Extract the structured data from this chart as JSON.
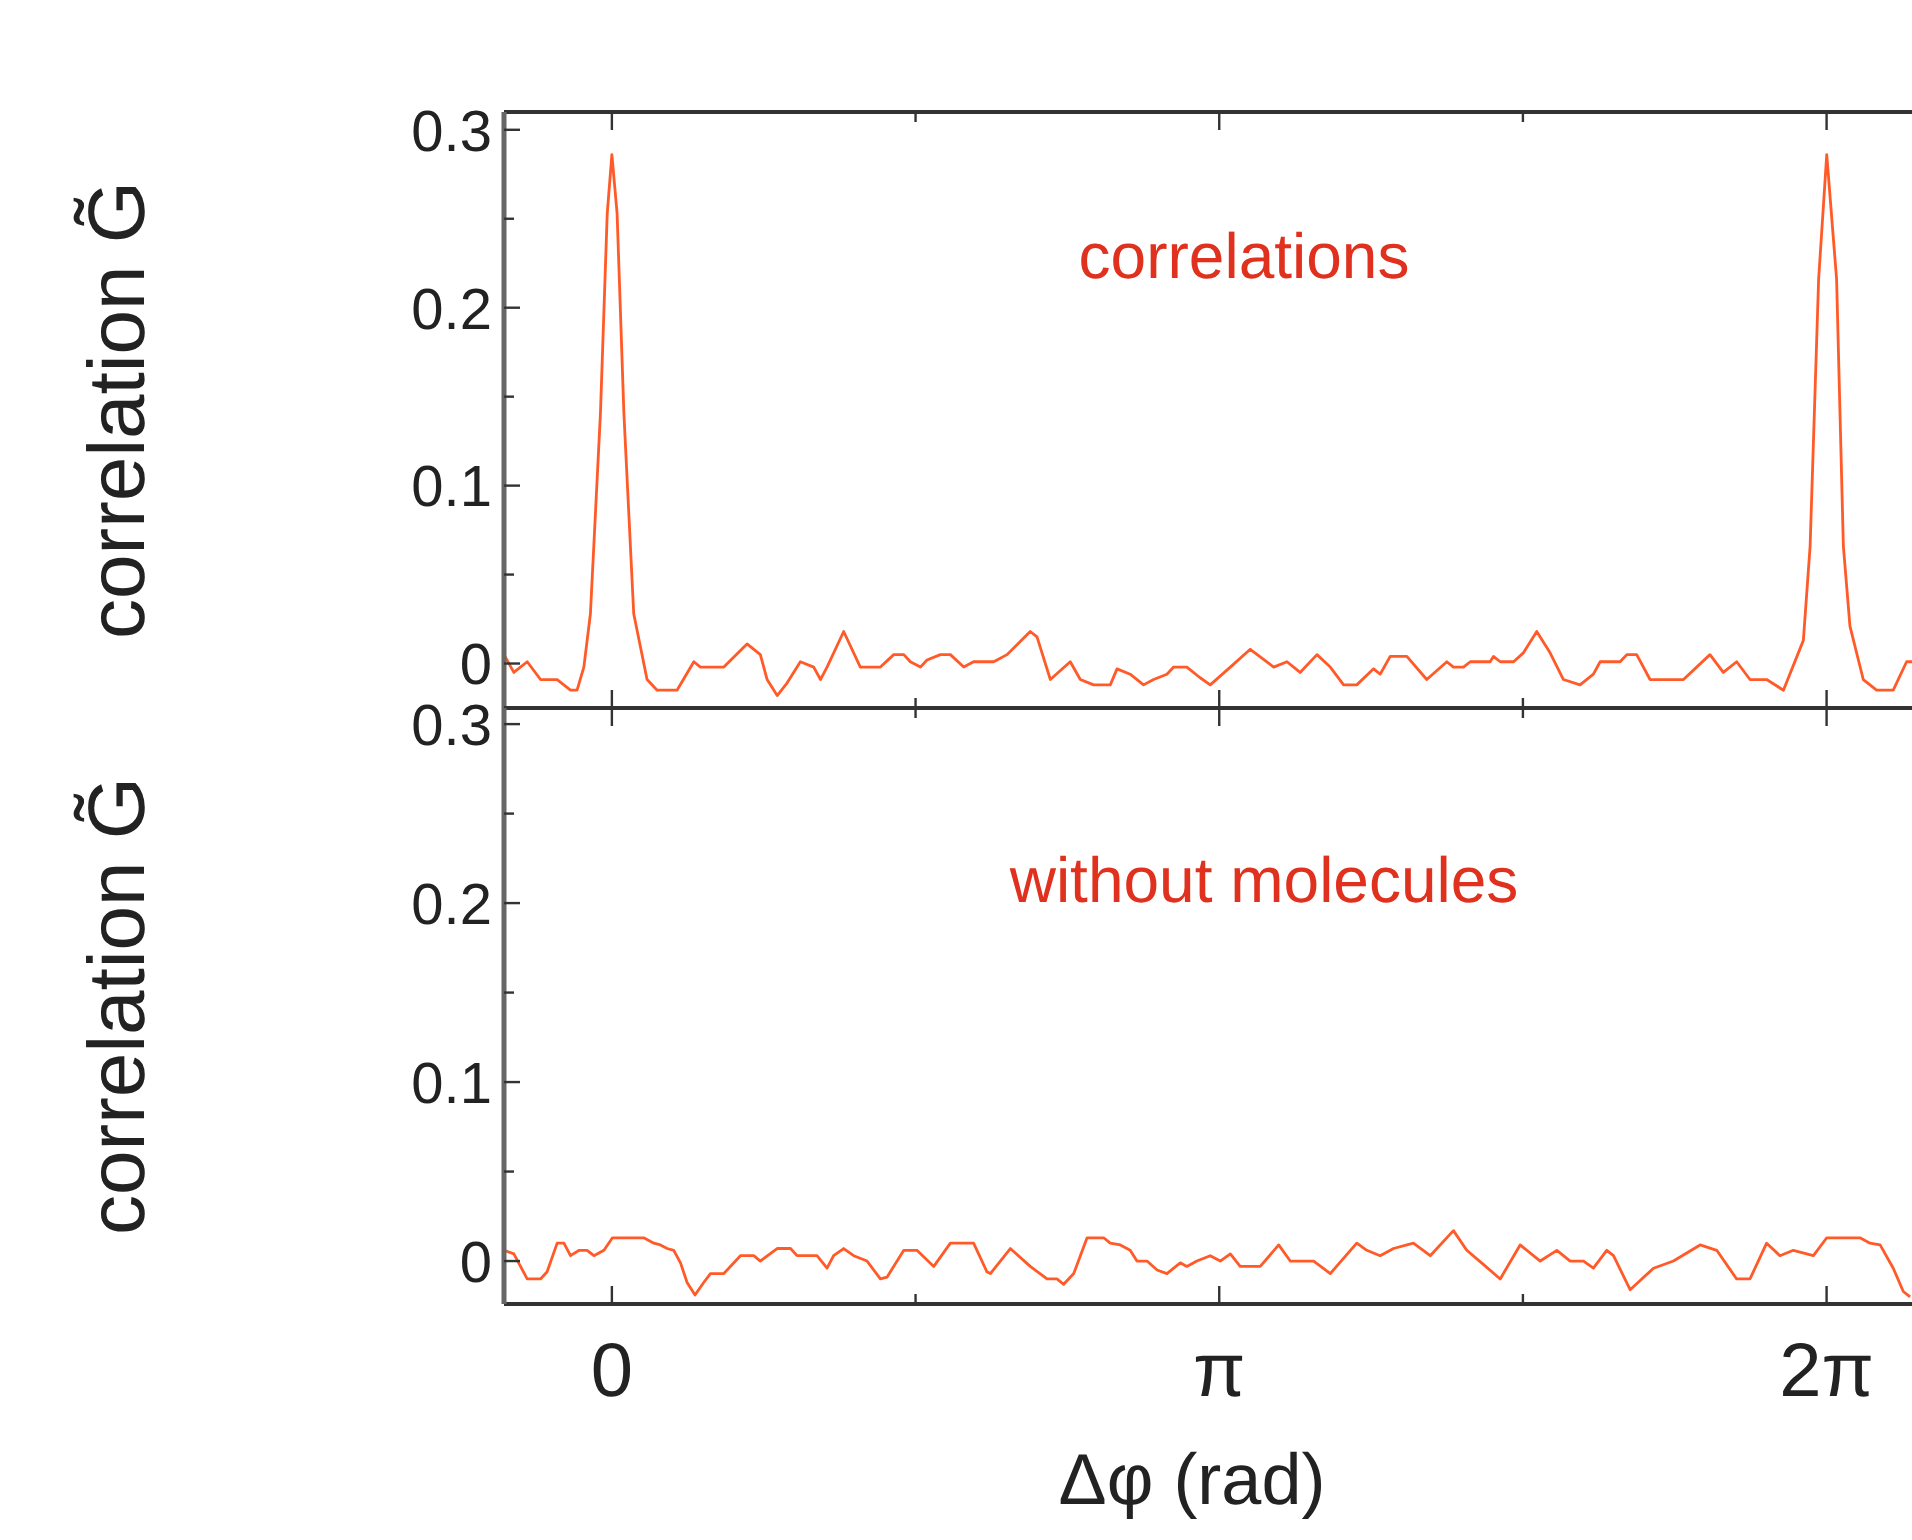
{
  "chart_data": [
    {
      "type": "line",
      "ylabel": "correlation G̃",
      "annotations": [
        "correlations"
      ],
      "xlim": [
        -0.558,
        6.725
      ],
      "ylim": [
        -0.025,
        0.31
      ],
      "xticks": [
        {
          "value": 0,
          "label": null
        },
        {
          "value": 1.5708,
          "label": null
        },
        {
          "value": 3.1416,
          "label": null
        },
        {
          "value": 4.7124,
          "label": null
        },
        {
          "value": 6.2832,
          "label": null
        }
      ],
      "yticks": [
        0,
        {
          "value": 0.05,
          "label": null
        },
        0.1,
        {
          "value": 0.15,
          "label": null
        },
        0.2,
        {
          "value": 0.25,
          "label": null
        },
        0.3
      ],
      "tick_labels": "y",
      "grid": false,
      "marker": "none",
      "line_style": "solid",
      "series": [
        {
          "color": "#ff5a28",
          "x": [
            -0.558,
            -0.507,
            -0.438,
            -0.369,
            -0.283,
            -0.214,
            -0.18,
            -0.145,
            -0.111,
            -0.059,
            -0.024,
            0.0,
            0.027,
            0.062,
            0.113,
            0.182,
            0.234,
            0.337,
            0.424,
            0.458,
            0.579,
            0.699,
            0.768,
            0.803,
            0.855,
            0.906,
            0.975,
            1.044,
            1.079,
            1.113,
            1.199,
            1.285,
            1.389,
            1.458,
            1.51,
            1.544,
            1.596,
            1.63,
            1.699,
            1.751,
            1.82,
            1.871,
            1.975,
            2.044,
            2.164,
            2.199,
            2.268,
            2.371,
            2.423,
            2.492,
            2.578,
            2.613,
            2.681,
            2.75,
            2.802,
            2.871,
            2.906,
            2.974,
            3.043,
            3.095,
            3.199,
            3.302,
            3.423,
            3.492,
            3.56,
            3.647,
            3.716,
            3.785,
            3.853,
            3.94,
            3.974,
            4.026,
            4.112,
            4.215,
            4.319,
            4.353,
            4.405,
            4.44,
            4.543,
            4.56,
            4.595,
            4.664,
            4.715,
            4.784,
            4.853,
            4.922,
            5.008,
            5.077,
            5.112,
            5.215,
            5.25,
            5.301,
            5.37,
            5.543,
            5.68,
            5.749,
            5.818,
            5.887,
            5.973,
            6.06,
            6.163,
            6.198,
            6.242,
            6.284,
            6.335,
            6.37,
            6.404,
            6.473,
            6.542,
            6.628,
            6.697,
            6.725
          ],
          "values": [
            0.005,
            -0.005,
            0.001,
            -0.009,
            -0.009,
            -0.015,
            -0.015,
            -0.002,
            0.028,
            0.141,
            0.253,
            0.286,
            0.253,
            0.141,
            0.028,
            -0.009,
            -0.015,
            -0.015,
            0.001,
            -0.002,
            -0.002,
            0.011,
            0.005,
            -0.009,
            -0.018,
            -0.011,
            0.001,
            -0.002,
            -0.009,
            -0.002,
            0.018,
            -0.002,
            -0.002,
            0.005,
            0.005,
            0.001,
            -0.002,
            0.002,
            0.005,
            0.005,
            -0.002,
            0.001,
            0.001,
            0.005,
            0.018,
            0.015,
            -0.009,
            0.001,
            -0.009,
            -0.012,
            -0.012,
            -0.003,
            -0.006,
            -0.012,
            -0.009,
            -0.006,
            -0.002,
            -0.002,
            -0.008,
            -0.012,
            -0.002,
            0.008,
            -0.002,
            0.001,
            -0.005,
            0.005,
            -0.002,
            -0.012,
            -0.012,
            -0.003,
            -0.006,
            0.004,
            0.004,
            -0.009,
            0.001,
            -0.002,
            -0.002,
            0.001,
            0.001,
            0.004,
            0.001,
            0.001,
            0.006,
            0.018,
            0.006,
            -0.009,
            -0.012,
            -0.006,
            0.001,
            0.001,
            0.005,
            0.005,
            -0.009,
            -0.009,
            0.005,
            -0.005,
            0.001,
            -0.009,
            -0.009,
            -0.015,
            0.013,
            0.066,
            0.216,
            0.286,
            0.216,
            0.066,
            0.021,
            -0.009,
            -0.015,
            -0.015,
            0.001,
            0.001
          ]
        }
      ]
    },
    {
      "type": "line",
      "ylabel": "correlation G̃",
      "xlabel": "Δφ (rad)",
      "annotations": [
        "without molecules"
      ],
      "xlim": [
        -0.558,
        6.725
      ],
      "ylim": [
        -0.024,
        0.309
      ],
      "xticks": [
        {
          "value": 0,
          "label": "0"
        },
        {
          "value": 1.5708,
          "label": null
        },
        {
          "value": 3.1416,
          "label": "π"
        },
        {
          "value": 4.7124,
          "label": null
        },
        {
          "value": 6.2832,
          "label": "2π"
        }
      ],
      "yticks": [
        0,
        {
          "value": 0.05,
          "label": null
        },
        0.1,
        {
          "value": 0.15,
          "label": null
        },
        0.2,
        {
          "value": 0.25,
          "label": null
        },
        0.3
      ],
      "grid": false,
      "marker": "none",
      "line_style": "solid",
      "series": [
        {
          "color": "#ff5a28",
          "x": [
            -0.558,
            -0.507,
            -0.438,
            -0.369,
            -0.335,
            -0.283,
            -0.248,
            -0.214,
            -0.169,
            -0.128,
            -0.093,
            -0.041,
            0.003,
            0.165,
            0.217,
            0.251,
            0.286,
            0.32,
            0.355,
            0.389,
            0.43,
            0.475,
            0.51,
            0.579,
            0.665,
            0.734,
            0.768,
            0.855,
            0.924,
            0.958,
            1.061,
            1.113,
            1.147,
            1.199,
            1.251,
            1.32,
            1.389,
            1.423,
            1.51,
            1.578,
            1.665,
            1.751,
            1.871,
            1.94,
            1.958,
            2.061,
            2.164,
            2.251,
            2.302,
            2.337,
            2.389,
            2.458,
            2.544,
            2.578,
            2.63,
            2.681,
            2.716,
            2.768,
            2.82,
            2.871,
            2.94,
            2.974,
            3.026,
            3.095,
            3.147,
            3.199,
            3.25,
            3.354,
            3.449,
            3.509,
            3.63,
            3.716,
            3.853,
            3.905,
            3.974,
            4.043,
            4.146,
            4.233,
            4.353,
            4.422,
            4.509,
            4.595,
            4.698,
            4.802,
            4.888,
            4.957,
            5.026,
            5.077,
            5.146,
            5.181,
            5.267,
            5.388,
            5.491,
            5.629,
            5.715,
            5.818,
            5.887,
            5.973,
            6.042,
            6.111,
            6.215,
            6.284,
            6.456,
            6.508,
            6.56,
            6.628,
            6.68,
            6.715
          ],
          "values": [
            0.006,
            0.004,
            -0.01,
            -0.01,
            -0.006,
            0.01,
            0.01,
            0.003,
            0.006,
            0.006,
            0.003,
            0.006,
            0.013,
            0.013,
            0.01,
            0.009,
            0.007,
            0.006,
            -0.001,
            -0.012,
            -0.019,
            -0.012,
            -0.007,
            -0.007,
            0.003,
            0.003,
            0.0,
            0.007,
            0.007,
            0.003,
            0.003,
            -0.004,
            0.003,
            0.007,
            0.003,
            0.0,
            -0.01,
            -0.009,
            0.006,
            0.006,
            -0.003,
            0.01,
            0.01,
            -0.006,
            -0.007,
            0.007,
            -0.003,
            -0.01,
            -0.01,
            -0.013,
            -0.007,
            0.013,
            0.013,
            0.01,
            0.009,
            0.006,
            0.0,
            0.0,
            -0.005,
            -0.007,
            -0.001,
            -0.003,
            0.0,
            0.003,
            0.0,
            0.004,
            -0.003,
            -0.003,
            0.009,
            0.0,
            0.0,
            -0.007,
            0.01,
            0.006,
            0.003,
            0.007,
            0.01,
            0.003,
            0.017,
            0.006,
            -0.002,
            -0.01,
            0.009,
            0.0,
            0.006,
            0.0,
            0.0,
            -0.004,
            0.006,
            0.003,
            -0.016,
            -0.004,
            0.0,
            0.009,
            0.006,
            -0.01,
            -0.01,
            0.01,
            0.003,
            0.006,
            0.003,
            0.013,
            0.013,
            0.01,
            0.009,
            -0.004,
            -0.017,
            -0.02
          ]
        }
      ]
    }
  ]
}
